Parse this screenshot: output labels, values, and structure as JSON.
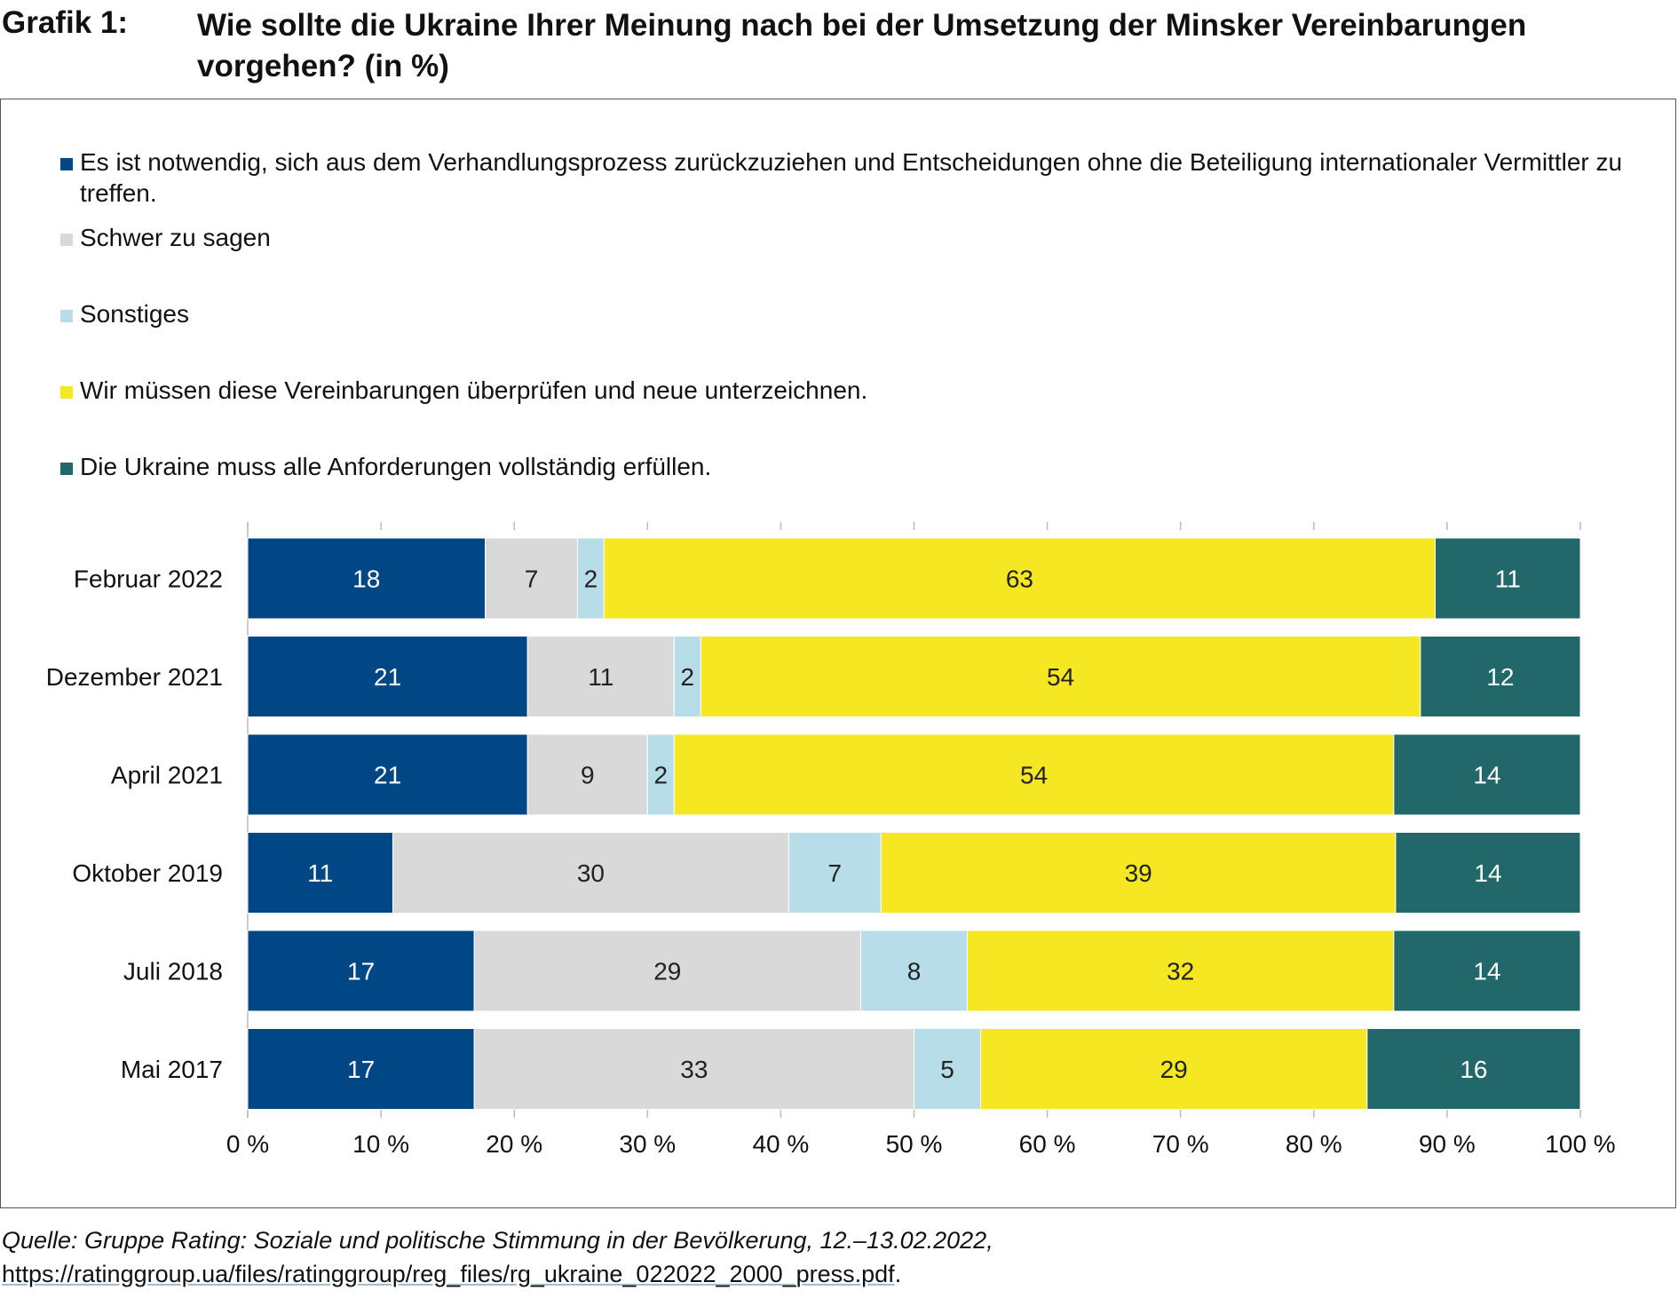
{
  "header": {
    "label": "Grafik 1:",
    "title": "Wie sollte die Ukraine Ihrer Meinung nach bei der Umsetzung der Minsker Vereinbarungen vorgehen? (in %)"
  },
  "colors": {
    "dark_blue": "#024785",
    "light_gray": "#d9d9d9",
    "light_blue": "#b7dde8",
    "yellow": "#f5e722",
    "teal": "#22686a"
  },
  "chart_data": {
    "type": "bar",
    "orientation": "horizontal",
    "stacked": true,
    "title": "Wie sollte die Ukraine Ihrer Meinung nach bei der Umsetzung der Minsker Vereinbarungen vorgehen? (in %)",
    "categories": [
      "Februar 2022",
      "Dezember 2021",
      "April 2021",
      "Oktober 2019",
      "Juli 2018",
      "Mai 2017"
    ],
    "series": [
      {
        "name": "Es ist notwendig, sich aus dem Verhandlungsprozess zurückzuziehen und Entscheidungen ohne die Beteiligung internationaler Vermittler zu treffen.",
        "color": "#024785",
        "label_color": "#ffffff",
        "values": [
          18,
          21,
          21,
          11,
          17,
          17
        ]
      },
      {
        "name": "Schwer zu sagen",
        "color": "#d9d9d9",
        "label_color": "#222222",
        "values": [
          7,
          11,
          9,
          30,
          29,
          33
        ]
      },
      {
        "name": "Sonstiges",
        "color": "#b7dde8",
        "label_color": "#222222",
        "values": [
          2,
          2,
          2,
          7,
          8,
          5
        ]
      },
      {
        "name": "Wir müssen diese Vereinbarungen überprüfen und neue unterzeichnen.",
        "color": "#f5e722",
        "label_color": "#222222",
        "values": [
          63,
          54,
          54,
          39,
          32,
          29
        ]
      },
      {
        "name": "Die Ukraine muss alle Anforderungen vollständig erfüllen.",
        "color": "#22686a",
        "label_color": "#ffffff",
        "values": [
          11,
          12,
          14,
          14,
          14,
          16
        ]
      }
    ],
    "xlim": [
      0,
      100
    ],
    "xticks": [
      0,
      10,
      20,
      30,
      40,
      50,
      60,
      70,
      80,
      90,
      100
    ],
    "xtick_labels": [
      "0 %",
      "10 %",
      "20 %",
      "30 %",
      "40 %",
      "50 %",
      "60 %",
      "70 %",
      "80 %",
      "90 %",
      "100 %"
    ],
    "xlabel": "",
    "ylabel": "",
    "legend_position": "top-left",
    "grid": false
  },
  "source": {
    "text": "Quelle: Gruppe Rating: Soziale und politische Stimmung in der Bevölkerung, 12.–13.02.2022, ",
    "link": "https://ratinggroup.ua/files/ratinggroup/reg_files/rg_ukraine_022022_2000_press.pdf",
    "end": "."
  }
}
